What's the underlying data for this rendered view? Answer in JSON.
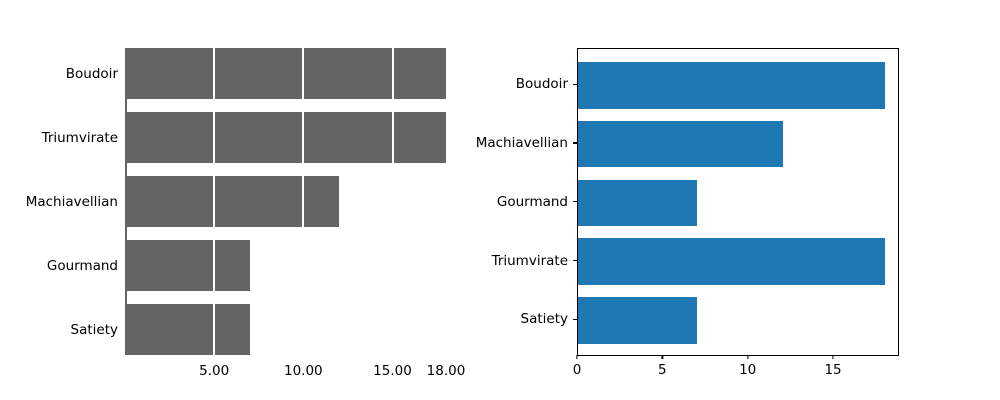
{
  "figure": {
    "background_color": "#ffffff",
    "text_color": "#000000"
  },
  "chart_data": [
    {
      "type": "bar",
      "orientation": "horizontal",
      "title": "",
      "xlabel": "",
      "ylabel": "",
      "categories": [
        "Boudoir",
        "Triumvirate",
        "Machiavellian",
        "Gourmand",
        "Satiety"
      ],
      "values": [
        18,
        18,
        12,
        7,
        7
      ],
      "bar_color": "#646464",
      "xlim": [
        0,
        18
      ],
      "xticks": [
        {
          "value": 5,
          "label": "5.00"
        },
        {
          "value": 10,
          "label": "10.00"
        },
        {
          "value": 15,
          "label": "15.00"
        },
        {
          "value": 18,
          "label": "18.00"
        }
      ],
      "gridlines": {
        "on": true,
        "values": [
          5,
          10,
          15
        ],
        "color": "#ffffff"
      },
      "spines": {
        "on": false
      },
      "zero_axis_line_color": "#646464",
      "tick_marks": false,
      "legend": null
    },
    {
      "type": "bar",
      "orientation": "horizontal",
      "title": "",
      "xlabel": "",
      "ylabel": "",
      "categories": [
        "Boudoir",
        "Machiavellian",
        "Gourmand",
        "Triumvirate",
        "Satiety"
      ],
      "values": [
        18,
        12,
        7,
        18,
        7
      ],
      "bar_color": "#1f77b4",
      "xlim": [
        0,
        18.8
      ],
      "xticks": [
        {
          "value": 0,
          "label": "0"
        },
        {
          "value": 5,
          "label": "5"
        },
        {
          "value": 10,
          "label": "10"
        },
        {
          "value": 15,
          "label": "15"
        }
      ],
      "gridlines": {
        "on": false
      },
      "spines": {
        "on": true,
        "color": "#000000"
      },
      "tick_marks": true,
      "legend": null
    }
  ]
}
